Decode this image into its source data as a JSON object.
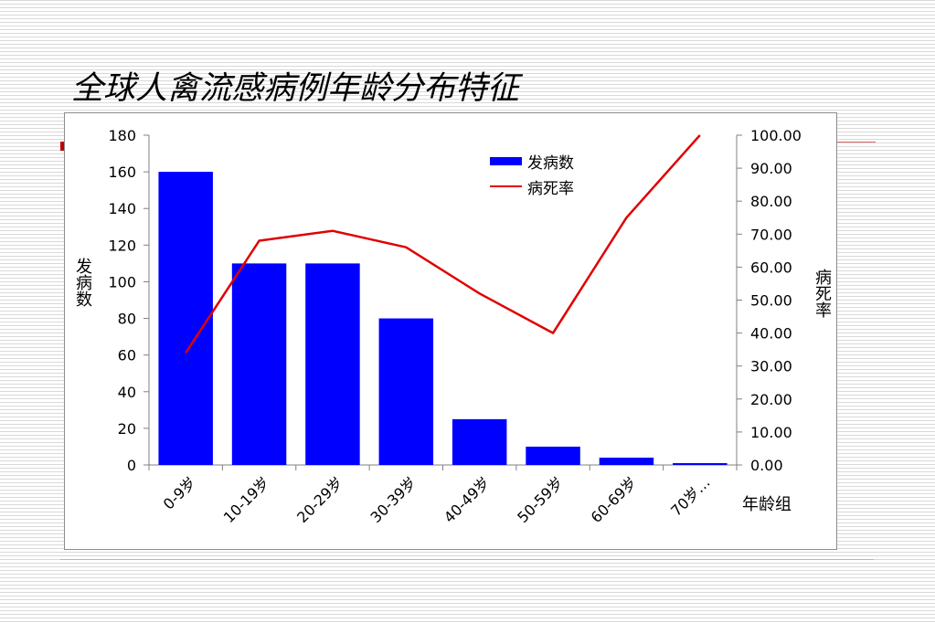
{
  "slide": {
    "title": "全球人禽流感病例年龄分布特征"
  },
  "chart_data": {
    "type": "bar",
    "categories": [
      "0-9岁",
      "10-19岁",
      "20-29岁",
      "30-39岁",
      "40-49岁",
      "50-59岁",
      "60-69岁",
      "70岁…"
    ],
    "series": [
      {
        "name": "发病数",
        "type": "bar",
        "axis": "left",
        "color": "#0000ff",
        "values": [
          160,
          110,
          110,
          80,
          25,
          10,
          4,
          1
        ]
      },
      {
        "name": "病死率",
        "type": "line",
        "axis": "right",
        "color": "#e00000",
        "values": [
          34.0,
          68.0,
          71.0,
          66.0,
          52.0,
          40.0,
          75.0,
          100.0
        ]
      }
    ],
    "xlabel": "年龄组",
    "ylabel": "发病数",
    "y2label": "病死率",
    "ylim": [
      0,
      180
    ],
    "yticks": [
      "0",
      "20",
      "40",
      "60",
      "80",
      "100",
      "120",
      "140",
      "160",
      "180"
    ],
    "y2lim": [
      0,
      100
    ],
    "y2ticks": [
      "0.00",
      "10.00",
      "20.00",
      "30.00",
      "40.00",
      "50.00",
      "60.00",
      "70.00",
      "80.00",
      "90.00",
      "100.00"
    ],
    "grid": false,
    "legend": "top-center"
  }
}
